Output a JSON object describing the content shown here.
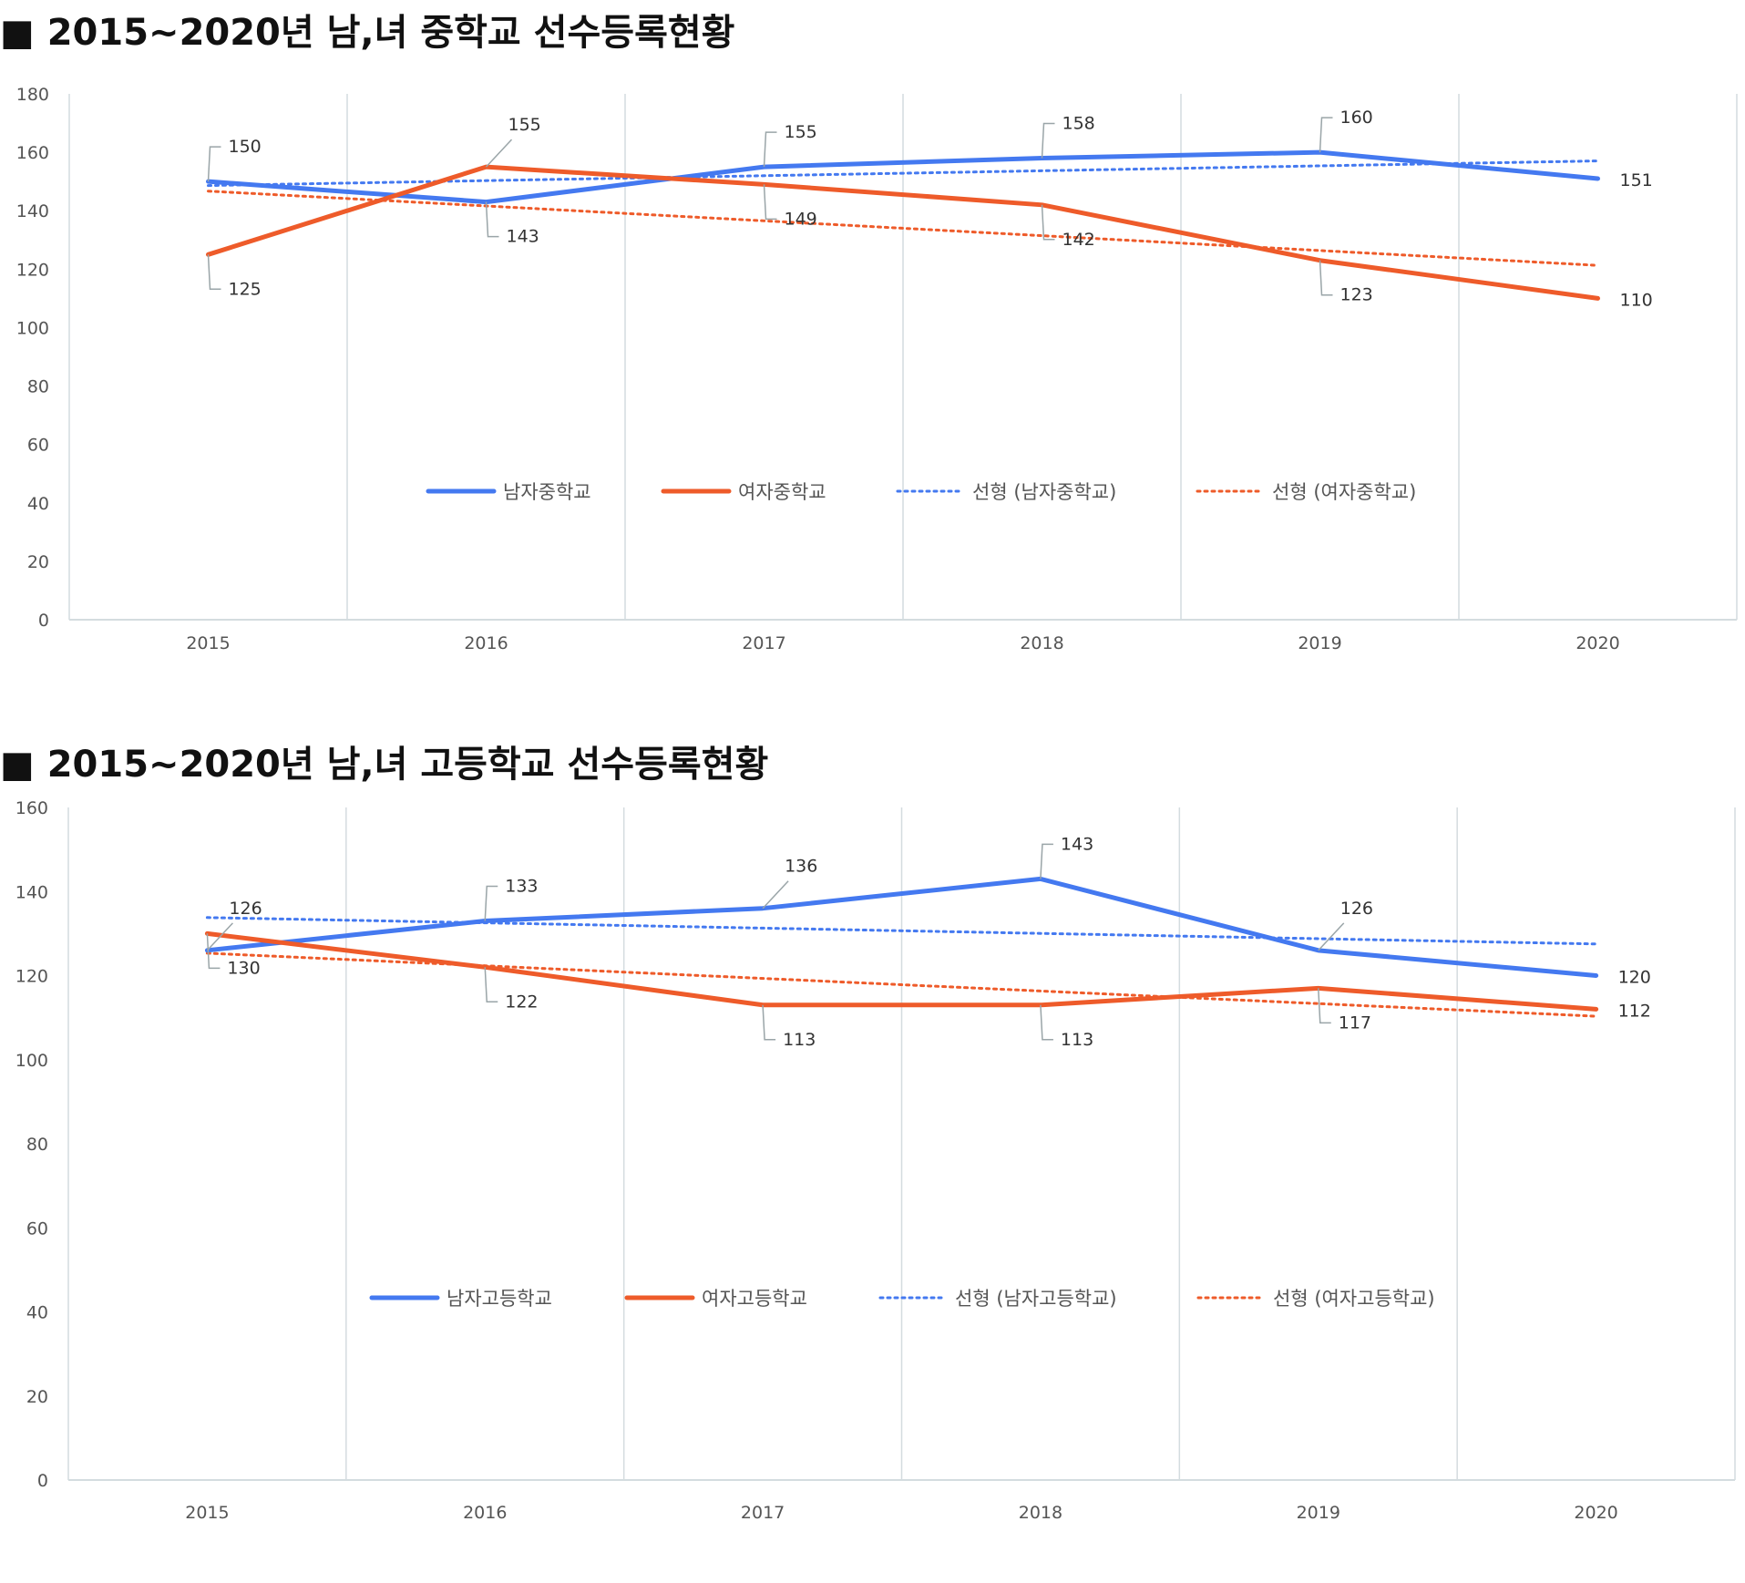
{
  "chart_data": [
    {
      "type": "line",
      "title": "■ 2015~2020년 남,녀 중학교 선수등록현황",
      "categories": [
        "2015",
        "2016",
        "2017",
        "2018",
        "2019",
        "2020"
      ],
      "ylim": [
        0,
        180
      ],
      "yticks": [
        0,
        20,
        40,
        60,
        80,
        100,
        120,
        140,
        160,
        180
      ],
      "grid": "vertical",
      "legend_position": "center",
      "series": [
        {
          "name": "남자중학교",
          "values": [
            150,
            143,
            155,
            158,
            160,
            151
          ],
          "color": "#4479f0",
          "style": "solid"
        },
        {
          "name": "여자중학교",
          "values": [
            125,
            155,
            149,
            142,
            123,
            110
          ],
          "color": "#ee5b2a",
          "style": "solid"
        }
      ],
      "trendlines": [
        {
          "name": "선형 (남자중학교)",
          "of": 0,
          "color": "#4479f0",
          "style": "dotted"
        },
        {
          "name": "선형 (여자중학교)",
          "of": 1,
          "color": "#ee5b2a",
          "style": "dotted"
        }
      ]
    },
    {
      "type": "line",
      "title": "■ 2015~2020년 남,녀 고등학교 선수등록현황",
      "categories": [
        "2015",
        "2016",
        "2017",
        "2018",
        "2019",
        "2020"
      ],
      "ylim": [
        0,
        160
      ],
      "yticks": [
        0,
        20,
        40,
        60,
        80,
        100,
        120,
        140,
        160
      ],
      "grid": "vertical",
      "legend_position": "center",
      "series": [
        {
          "name": "남자고등학교",
          "values": [
            126,
            133,
            136,
            143,
            126,
            120
          ],
          "color": "#4479f0",
          "style": "solid"
        },
        {
          "name": "여자고등학교",
          "values": [
            130,
            122,
            113,
            113,
            117,
            112
          ],
          "color": "#ee5b2a",
          "style": "solid"
        }
      ],
      "trendlines": [
        {
          "name": "선형 (남자고등학교)",
          "of": 0,
          "color": "#4479f0",
          "style": "dotted"
        },
        {
          "name": "선형 (여자고등학교)",
          "of": 1,
          "color": "#ee5b2a",
          "style": "dotted"
        }
      ]
    }
  ]
}
